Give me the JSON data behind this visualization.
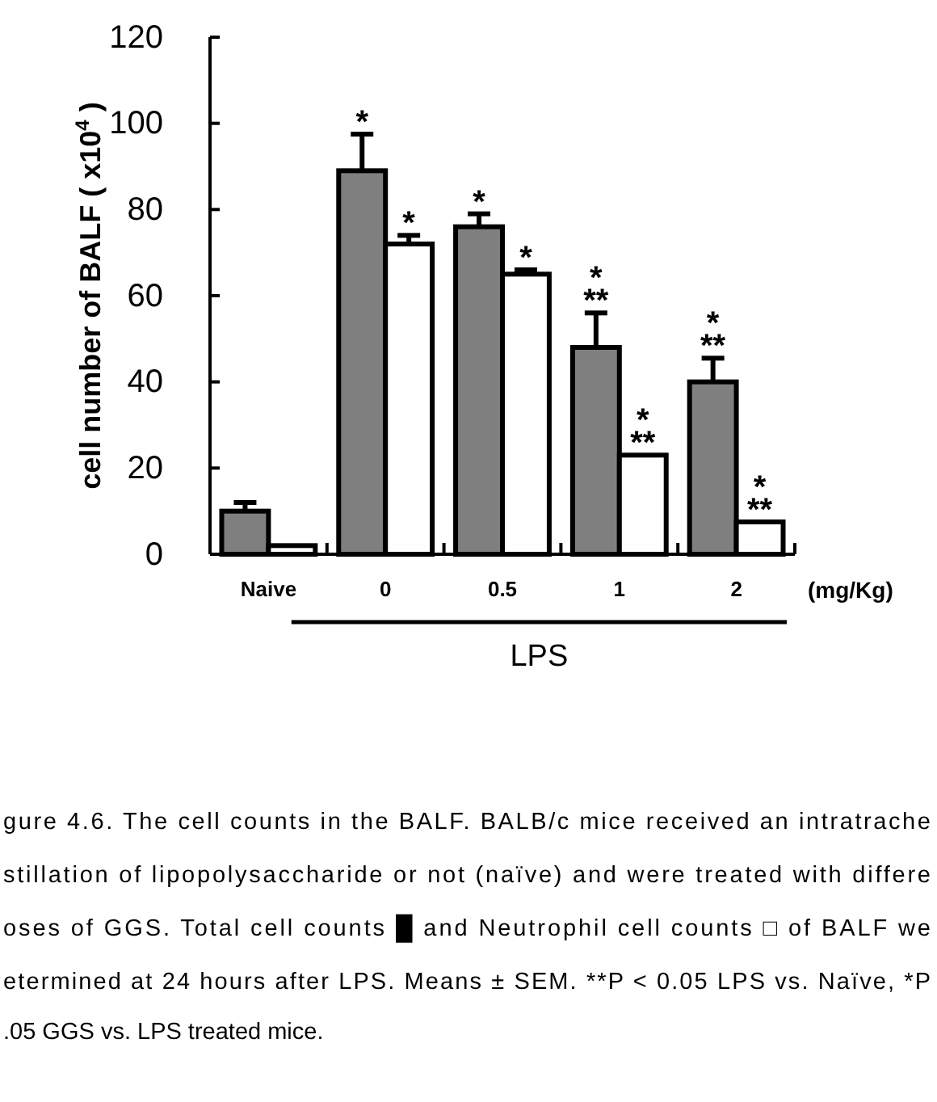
{
  "chart_data": {
    "type": "bar",
    "categories": [
      "Naive",
      "0",
      "0.5",
      "1",
      "2"
    ],
    "series": [
      {
        "color": "#7f7f7f",
        "values": [
          10,
          89,
          76,
          48,
          40
        ],
        "errors": [
          [
            10,
            12
          ],
          [
            89,
            97.5
          ],
          [
            76,
            79
          ],
          [
            48,
            56
          ],
          [
            40,
            45.5
          ]
        ]
      },
      {
        "color": "#ffffff",
        "values": [
          2,
          72,
          65,
          23,
          7.5
        ],
        "errors": [
          null,
          [
            72,
            74
          ],
          [
            65,
            66
          ],
          null,
          null
        ]
      }
    ],
    "ylim": [
      0,
      120
    ],
    "yticks": [
      0,
      20,
      40,
      60,
      80,
      100,
      120
    ],
    "ylabel": "cell number of BALF ( x10$^{4}$ )",
    "xlabel": "LPS",
    "grid": false,
    "annotations": [
      {
        "text": "*",
        "x": "0",
        "y": 89
      },
      {
        "text": "*",
        "x": "0",
        "y": 72
      },
      {
        "text": "*",
        "x": "0.5",
        "y": 76
      },
      {
        "text": "*",
        "x": "0.5",
        "y": 65
      },
      {
        "text": "*",
        "x": "1",
        "y": 48
      },
      {
        "text": "**",
        "x": "1",
        "y": 48
      },
      {
        "text": "*",
        "x": "1",
        "y": 23
      },
      {
        "text": "**",
        "x": "1",
        "y": 23
      },
      {
        "text": "*",
        "x": "2",
        "y": 40
      },
      {
        "text": "**",
        "x": "2",
        "y": 40
      },
      {
        "text": "*",
        "x": "2",
        "y": 7.5
      },
      {
        "text": "**",
        "x": "2",
        "y": 7.5
      },
      "(mg/Kg)",
      "gure 4.6. The cell counts in the BALF. BALB/c mice received an intratrache",
      "stillation of lipopolysaccharide or not (naïve) and were treated with differe",
      "oses of GGS. Total cell counts █ and Neutrophil cell counts □ of BALF we",
      "etermined at 24 hours after LPS. Means ± SEM. **P < 0.05 LPS vs. Naïve, *P",
      ".05 GGS vs. LPS treated mice."
    ]
  }
}
